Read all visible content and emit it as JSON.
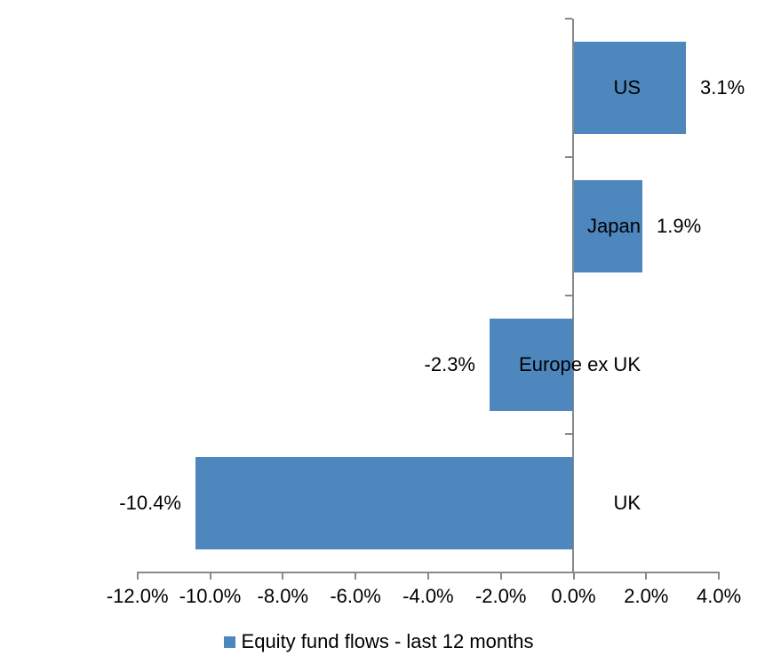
{
  "chart_data": {
    "type": "bar",
    "orientation": "horizontal",
    "title": "",
    "xlabel": "",
    "ylabel": "",
    "categories": [
      "US",
      "Japan",
      "Europe ex UK",
      "UK"
    ],
    "series": [
      {
        "name": "Equity fund flows - last 12 months",
        "values": [
          3.1,
          1.9,
          -2.3,
          -10.4
        ],
        "data_labels": [
          "3.1%",
          "1.9%",
          "-2.3%",
          "-10.4%"
        ]
      }
    ],
    "xlim": [
      -12,
      4
    ],
    "x_ticks": [
      -12,
      -10,
      -8,
      -6,
      -4,
      -2,
      0,
      2,
      4
    ],
    "x_tick_labels": [
      "-12.0%",
      "-10.0%",
      "-8.0%",
      "-6.0%",
      "-4.0%",
      "-2.0%",
      "0.0%",
      "2.0%",
      "4.0%"
    ],
    "grid": false,
    "legend_position": "bottom"
  },
  "legend": {
    "label": "Equity fund flows - last 12 months"
  },
  "colors": {
    "bar": "#4D87BE",
    "axis": "#898989",
    "text": "#000000",
    "background": "#ffffff"
  }
}
